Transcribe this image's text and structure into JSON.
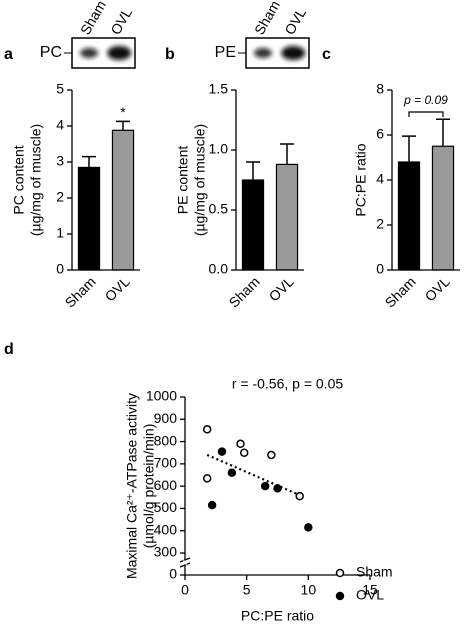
{
  "chart_data": [
    {
      "type": "bar",
      "panel": "a",
      "blot": {
        "label": "PC",
        "lanes": [
          "Sham",
          "OVL"
        ]
      },
      "ylabel": [
        "PC content",
        "(µg/mg of muscle)"
      ],
      "categories": [
        "Sham",
        "OVL"
      ],
      "values": [
        2.85,
        3.88
      ],
      "errors": [
        0.3,
        0.25
      ],
      "colors": [
        "#000000",
        "#999999"
      ],
      "annotation": "*",
      "ylim": [
        0,
        5
      ],
      "yticks": [
        0,
        1,
        2,
        3,
        4,
        5
      ]
    },
    {
      "type": "bar",
      "panel": "b",
      "blot": {
        "label": "PE",
        "lanes": [
          "Sham",
          "OVL"
        ]
      },
      "ylabel": [
        "PE content",
        "(µg/mg of muscle)"
      ],
      "categories": [
        "Sham",
        "OVL"
      ],
      "values": [
        0.75,
        0.88
      ],
      "errors": [
        0.15,
        0.17
      ],
      "colors": [
        "#000000",
        "#999999"
      ],
      "ylim": [
        0,
        1.5
      ],
      "yticks": [
        {
          "value": 0,
          "label": "0.0"
        },
        0.5,
        {
          "value": 1,
          "label": "1.0"
        },
        1.5
      ]
    },
    {
      "type": "bar",
      "panel": "c",
      "ylabel": [
        "PC:PE ratio"
      ],
      "categories": [
        "Sham",
        "OVL"
      ],
      "values": [
        4.8,
        5.5
      ],
      "errors": [
        1.15,
        1.2
      ],
      "colors": [
        "#000000",
        "#999999"
      ],
      "annotation": "p = 0.09",
      "ylim": [
        0,
        8
      ],
      "yticks": [
        0,
        2,
        4,
        6,
        8
      ]
    },
    {
      "type": "scatter",
      "panel": "d",
      "ylabel": [
        "Maximal Ca²⁺-ATPase activity",
        "(µmol/g protein/min)"
      ],
      "xlabel": "PC:PE ratio",
      "annotation": "r = -0.56, p = 0.05",
      "series": [
        {
          "name": "Sham",
          "color": "#000000",
          "marker": "open",
          "x": [
            1.8,
            1.8,
            4.5,
            4.8,
            7,
            9.3
          ],
          "values": [
            855,
            635,
            790,
            750,
            740,
            555
          ]
        },
        {
          "name": "OVL",
          "color": "#000000",
          "marker": "filled",
          "x": [
            2.2,
            3,
            3.8,
            6.5,
            7.5,
            10
          ],
          "values": [
            515,
            755,
            660,
            600,
            590,
            415
          ]
        }
      ],
      "trend": {
        "x": [
          1.8,
          9.5
        ],
        "y": [
          740,
          555
        ]
      },
      "xlim": [
        0,
        15
      ],
      "xticks": [
        0,
        5,
        10,
        15
      ],
      "ylim": [
        0,
        1000
      ],
      "axis_break": [
        0,
        300
      ],
      "yticks": [
        0,
        300,
        400,
        500,
        600,
        700,
        800,
        900,
        1000
      ]
    }
  ]
}
